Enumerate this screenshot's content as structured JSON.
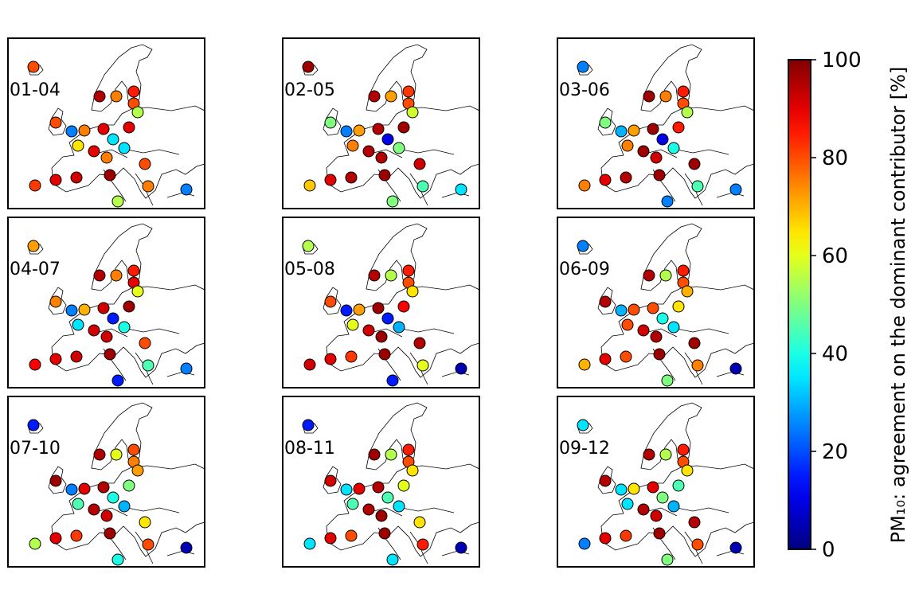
{
  "chart_data": {
    "type": "map-grid",
    "colorbar": {
      "label": "PM₁₀: agreement on the dominant contributor [%]",
      "clim": [
        0,
        100
      ],
      "ticks": [
        0,
        20,
        40,
        60,
        80,
        100
      ],
      "colormap": "jet"
    },
    "panels": [
      {
        "label": "01-04",
        "values": [
          80,
          95,
          75,
          85,
          80,
          55,
          80,
          25,
          75,
          90,
          90,
          35,
          65,
          90,
          35,
          75,
          80,
          82,
          90,
          92,
          97,
          75,
          25,
          55
        ]
      },
      {
        "label": "02-05",
        "values": [
          97,
          95,
          72,
          82,
          80,
          58,
          50,
          25,
          72,
          95,
          97,
          10,
          75,
          95,
          50,
          95,
          92,
          68,
          90,
          95,
          97,
          45,
          35,
          50
        ]
      },
      {
        "label": "03-06",
        "values": [
          25,
          97,
          75,
          85,
          80,
          55,
          50,
          30,
          72,
          97,
          85,
          10,
          75,
          97,
          40,
          92,
          97,
          75,
          90,
          95,
          97,
          45,
          25,
          25
        ]
      },
      {
        "label": "04-07",
        "values": [
          72,
          95,
          75,
          85,
          90,
          60,
          75,
          25,
          70,
          92,
          97,
          15,
          35,
          92,
          40,
          92,
          80,
          88,
          90,
          92,
          97,
          45,
          25,
          15
        ]
      },
      {
        "label": "05-08",
        "values": [
          55,
          95,
          55,
          85,
          80,
          65,
          80,
          15,
          72,
          97,
          88,
          15,
          60,
          92,
          30,
          97,
          95,
          92,
          90,
          82,
          97,
          60,
          5,
          15
        ]
      },
      {
        "label": "06-09",
        "values": [
          25,
          95,
          55,
          85,
          80,
          70,
          95,
          30,
          80,
          80,
          65,
          40,
          80,
          92,
          35,
          95,
          97,
          70,
          90,
          80,
          97,
          75,
          5,
          50
        ]
      },
      {
        "label": "07-10",
        "values": [
          15,
          95,
          60,
          80,
          75,
          72,
          97,
          25,
          90,
          95,
          50,
          40,
          45,
          95,
          30,
          92,
          65,
          55,
          90,
          82,
          97,
          80,
          5,
          40
        ]
      },
      {
        "label": "08-11",
        "values": [
          15,
          97,
          55,
          85,
          80,
          65,
          92,
          35,
          90,
          95,
          60,
          45,
          45,
          95,
          35,
          97,
          65,
          35,
          90,
          80,
          97,
          85,
          5,
          35
        ]
      },
      {
        "label": "09-12",
        "values": [
          35,
          95,
          55,
          85,
          80,
          65,
          95,
          35,
          65,
          90,
          45,
          50,
          35,
          95,
          30,
          92,
          95,
          25,
          90,
          82,
          97,
          80,
          5,
          50
        ]
      }
    ]
  }
}
